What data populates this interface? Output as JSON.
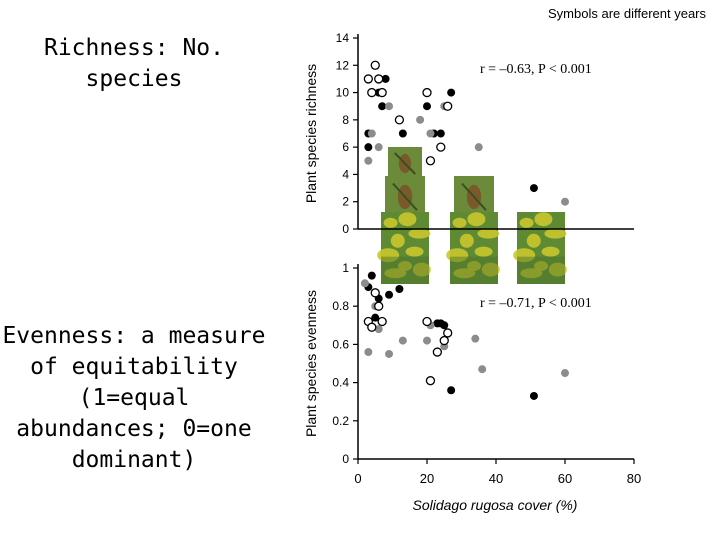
{
  "note": "Symbols are different years",
  "left_text": {
    "richness": "Richness: No. species",
    "evenness": "Evenness: a measure of equitability (1=equal abundances; 0=one dominant)"
  },
  "colors": {
    "series_a": "#000000",
    "series_b": "#8c8c8c",
    "series_c_stroke": "#000000",
    "plant_yellow": "#c9c62c",
    "plant_green": "#5f8a34",
    "beetle_brown": "#7a5a2a"
  },
  "icons": [
    "goldenrod-plant-photo",
    "beetle-photo"
  ],
  "chart_data": [
    {
      "type": "scatter",
      "ylabel": "Plant species richness",
      "xlabel": "",
      "xlim": [
        0,
        80
      ],
      "ylim": [
        0,
        14
      ],
      "yticks": [
        "0",
        "2",
        "4",
        "6",
        "8",
        "10",
        "12",
        "14"
      ],
      "annotation": "r = –0.63, P < 0.001",
      "series": [
        {
          "style": "black-filled",
          "x": [
            3,
            3,
            4,
            6,
            7,
            8,
            12,
            13,
            20,
            22,
            24,
            27,
            51
          ],
          "y": [
            7,
            6,
            10,
            10,
            9,
            11,
            8,
            7,
            9,
            7,
            7,
            10,
            3
          ]
        },
        {
          "style": "gray-filled",
          "x": [
            3,
            4,
            5,
            6,
            7,
            9,
            12,
            18,
            21,
            25,
            35,
            60
          ],
          "y": [
            5,
            7,
            12,
            6,
            10,
            9,
            8,
            8,
            7,
            9,
            6,
            2
          ]
        },
        {
          "style": "open",
          "x": [
            3,
            4,
            5,
            6,
            7,
            12,
            20,
            21,
            24,
            26
          ],
          "y": [
            11,
            10,
            12,
            11,
            10,
            8,
            10,
            5,
            6,
            9
          ]
        }
      ]
    },
    {
      "type": "scatter",
      "ylabel": "Plant species evenness",
      "xlabel": "Solidago rugosa cover (%)",
      "xlim": [
        0,
        80
      ],
      "ylim": [
        0,
        1
      ],
      "xticks": [
        "0",
        "20",
        "40",
        "60",
        "80"
      ],
      "yticks": [
        "0",
        "0.2",
        "0.4",
        "0.6",
        "0.8",
        "1"
      ],
      "annotation": "r = –0.71, P < 0.001",
      "series": [
        {
          "style": "black-filled",
          "x": [
            3,
            4,
            5,
            6,
            9,
            12,
            23,
            24,
            25,
            27,
            51
          ],
          "y": [
            0.9,
            0.96,
            0.74,
            0.84,
            0.86,
            0.89,
            0.71,
            0.71,
            0.7,
            0.36,
            0.33
          ]
        },
        {
          "style": "gray-filled",
          "x": [
            2,
            3,
            5,
            6,
            9,
            13,
            20,
            21,
            25,
            34,
            36,
            60
          ],
          "y": [
            0.92,
            0.56,
            0.8,
            0.68,
            0.55,
            0.62,
            0.62,
            0.7,
            0.59,
            0.63,
            0.47,
            0.45
          ]
        },
        {
          "style": "open",
          "x": [
            3,
            4,
            5,
            6,
            7,
            20,
            21,
            23,
            25,
            26
          ],
          "y": [
            0.72,
            0.69,
            0.87,
            0.8,
            0.72,
            0.72,
            0.41,
            0.56,
            0.62,
            0.66
          ]
        }
      ]
    }
  ]
}
